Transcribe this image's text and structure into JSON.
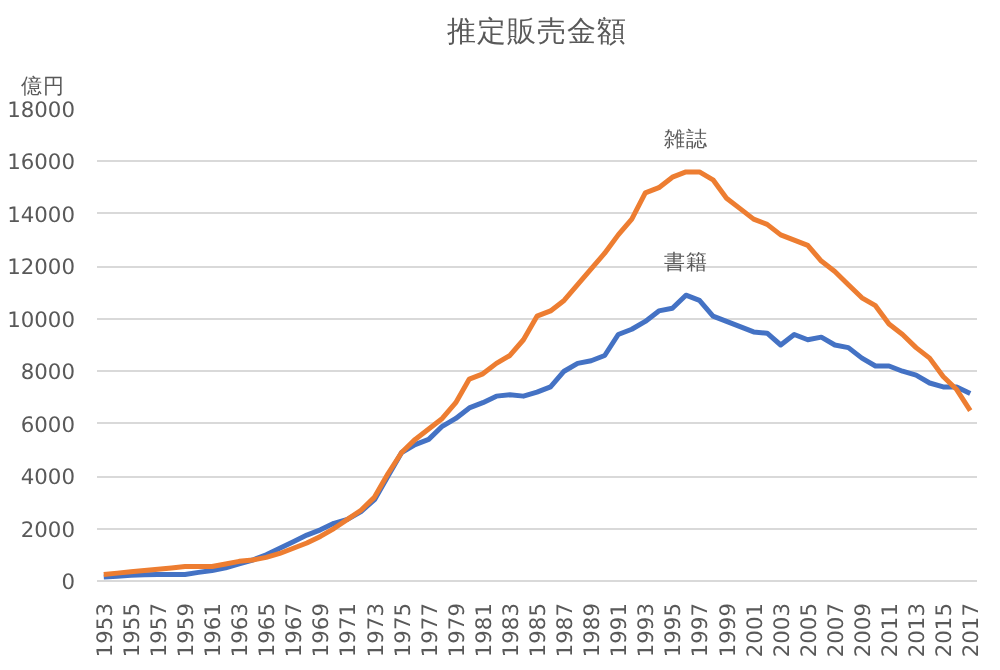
{
  "chart_data": {
    "type": "line",
    "title": "推定販売金額",
    "ylabel": "億円",
    "x": [
      1953,
      1954,
      1955,
      1956,
      1957,
      1958,
      1959,
      1960,
      1961,
      1962,
      1963,
      1964,
      1965,
      1966,
      1967,
      1968,
      1969,
      1970,
      1971,
      1972,
      1973,
      1974,
      1975,
      1976,
      1977,
      1978,
      1979,
      1980,
      1981,
      1982,
      1983,
      1984,
      1985,
      1986,
      1987,
      1988,
      1989,
      1990,
      1991,
      1992,
      1993,
      1994,
      1995,
      1996,
      1997,
      1998,
      1999,
      2000,
      2001,
      2002,
      2003,
      2004,
      2005,
      2006,
      2007,
      2008,
      2009,
      2010,
      2011,
      2012,
      2013,
      2014,
      2015,
      2016,
      2017
    ],
    "series": [
      {
        "name": "書籍",
        "color": "#4472c4",
        "values": [
          150,
          180,
          220,
          240,
          250,
          250,
          250,
          330,
          400,
          500,
          650,
          800,
          1000,
          1250,
          1500,
          1750,
          1950,
          2200,
          2350,
          2650,
          3100,
          4000,
          4900,
          5200,
          5400,
          5900,
          6200,
          6600,
          6800,
          7050,
          7100,
          7050,
          7200,
          7400,
          8000,
          8300,
          8400,
          8600,
          9400,
          9600,
          9900,
          10300,
          10400,
          10900,
          10700,
          10100,
          9900,
          9700,
          9500,
          9450,
          9000,
          9400,
          9200,
          9300,
          9000,
          8900,
          8500,
          8200,
          8200,
          8000,
          7850,
          7550,
          7400,
          7400,
          7150
        ]
      },
      {
        "name": "雑誌",
        "color": "#ed7d31",
        "values": [
          250,
          300,
          350,
          400,
          450,
          500,
          550,
          550,
          550,
          650,
          750,
          800,
          900,
          1050,
          1250,
          1450,
          1700,
          2000,
          2350,
          2700,
          3200,
          4100,
          4900,
          5400,
          5800,
          6200,
          6800,
          7700,
          7900,
          8300,
          8600,
          9200,
          10100,
          10300,
          10700,
          11300,
          11900,
          12500,
          13200,
          13800,
          14800,
          15000,
          15400,
          15600,
          15600,
          15300,
          14600,
          14200,
          13800,
          13600,
          13200,
          13000,
          12800,
          12200,
          11800,
          11300,
          10800,
          10500,
          9800,
          9400,
          8900,
          8500,
          7800,
          7300,
          6500
        ]
      }
    ],
    "xlim": [
      1952.5,
      2017.5
    ],
    "xticks": [
      1953,
      1955,
      1957,
      1959,
      1961,
      1963,
      1965,
      1967,
      1969,
      1971,
      1973,
      1975,
      1977,
      1979,
      1981,
      1983,
      1985,
      1987,
      1989,
      1991,
      1993,
      1995,
      1997,
      1999,
      2001,
      2003,
      2005,
      2007,
      2009,
      2011,
      2013,
      2015,
      2017
    ],
    "ylim": [
      0,
      18000
    ],
    "yticks": [
      0,
      2000,
      4000,
      6000,
      8000,
      10000,
      12000,
      14000,
      16000,
      18000
    ],
    "grid": "y",
    "legend": false,
    "marker": "none",
    "line_style": "solid"
  }
}
